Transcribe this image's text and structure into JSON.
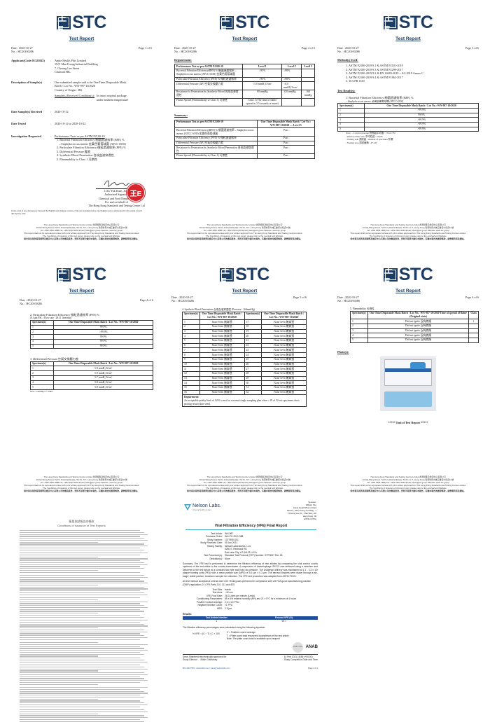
{
  "stc": {
    "logo_glyph": "王E",
    "logo_text": "STC",
    "report_title": "Test Report",
    "date_label": "Date",
    "date": ": 2020-10-27",
    "no_label": "No.",
    "no": ": HC20100286",
    "footer": [
      "The Hong Kong Standards and Testing Centre Limited 香港標準及檢定中心有限公司",
      "10 Dai Wang Street, Tai Po Industrial Estate, Tai Po, N.T., Hong Kong 香港新界大埔工業邨大旺道10號",
      "Tel: +852 2666 1888  Fax: +852 2664 4353  Email: hkstc@stc.group  Website: www.stc.group",
      "This report shall not be reproduced unless with prior written approval from The Hong Kong Standards and Testing Centre Limited.",
      "The Conditions of Issuance of this test report, please refer to the overleaf and Website.",
      "除非事先得到香港標準及檢定中心有限公司的書面批准，否則不得部分複印本報告。有關本報告的簽發條款，請參閱背頁及網站。"
    ]
  },
  "page1": {
    "page": "Page 1 of 6",
    "applicant_label": "Applicant(Code:01325843)",
    "applicant": [
      "Annie Health Plus Limited",
      "19/F. Man Foong Industrial Building",
      "7. Cheung Lee Street",
      "Chaiwan  HK."
    ],
    "desc_label": "Description of Sample(s)",
    "desc": [
      "One submitted sample said to be One Time Disposable Mask.",
      "Batch / Lot No.: WN-987-10/2020",
      "Country of Origin : HK"
    ],
    "cond_label": "Sample(s) Received Condition(s):",
    "cond": "In intact original package under ambient temperature",
    "received_label": "Date Sample(s) Received",
    "received": "2020-10-12",
    "tested_label": "Date Tested",
    "tested": "2020-10-14 to 2020-10-22",
    "inv_label": "Investigation Requested",
    "inv_title": "Performance Tests as per ASTM F2100-19",
    "inv": [
      "1. Bacterial Filtration Efficiency 細菌過濾效率 (BFE) %",
      "   – Staphylococcus aureus 金黃色葡萄球菌 (ATCC 6538)",
      "2. Particulate Filtration Efficiency 微粒過濾效率 (PFE) %",
      "3. Differential Pressure 壓差",
      "4. Synthetic Blood Penetration 合成血液穿透性",
      "5. Flammability to Class 1 可燃性"
    ],
    "seal_glyph": "王E",
    "signatory": [
      "LAU Yuk Kuen, Joey",
      "Authorized Signatory",
      "Chemical and Food Department",
      "For and on behalf of",
      "The Hong Kong Standards and Testing Centre Ltd"
    ],
    "disclaimer": "In the event of any discrepancy between the English and Chinese versions of the test statement below, the English version shall prevail to the extent of such discrepancy only."
  },
  "page2": {
    "page": "Page 2 of 6",
    "req_title": "Requirement:",
    "req_table": {
      "headers": [
        "Performance Test as per ASTM F2100-19",
        "Level 1",
        "Level 2",
        "Level 3"
      ],
      "rows": [
        [
          "Bacterial Filtration Efficiency(BFE) % 細菌過濾效率 – Staphylococcus aureus (ATCC 6538) 金黃色葡萄球菌",
          "≥95%",
          "≥98%",
          ""
        ],
        [
          "Particulate Filtration Efficiency (PFE) % 微粒過濾效率",
          "≥95%",
          "≥98%",
          ""
        ],
        [
          "Differential Pressure (ΔP) 空氣交換壓力差",
          "<5.0 mmH₂O/cm²",
          "<6.0 mmH₂O/cm²",
          ""
        ],
        [
          "Resistance to Penetration by Synthetic Blood 合成血液穿透性",
          "80 mmHg",
          "120 mmHg",
          "160 mmHg"
        ],
        [
          "Flame Spread (Flammability to Class 1) 可燃性",
          "Class 1 (The time of flame spread is 3.5 seconds or more)",
          "",
          ""
        ]
      ]
    },
    "sum_title": "Summary:",
    "sum_table": {
      "headers": [
        "Performance Test as per ASTM F2100-19",
        "One Time Disposable Mask Batch / Lot No.: WN-987-10/2020 — Level 3"
      ],
      "rows": [
        [
          "Bacterial Filtration Efficiency(BFE) % 細菌過濾效率 – Staphylococcus aureus (ATCC 6538) 金黃色葡萄球菌",
          "Pass"
        ],
        [
          "Particulate Filtration Efficiency (PFE) % 微粒過濾效率",
          "Pass"
        ],
        [
          "Differential Pressure (ΔP) 空氣交換壓力差",
          "Pass"
        ],
        [
          "Resistance to Penetration by Synthetic Blood Penetration 合成血液穿透性",
          "Pass"
        ],
        [
          "Flame Spread (Flammability to Class 1) 可燃性",
          "Pass"
        ]
      ]
    }
  },
  "page3": {
    "page": "Page 3 of 6",
    "methods_title": "Method(s) Used:",
    "methods": [
      "1.  ASTM F2100-2019 9.1 & ASTM F2101-2019",
      "2.  ASTM F2100-2019 9.3 & ASTM F2299-2017",
      "3.  ASTM F2100-2019 9.2 & EN 14683:2019 + AC:2019 Annex C",
      "4.  ASTM F2100-2019 9.4 & ASTM F1862-2017",
      "5.  16 CFR 1610"
    ],
    "results_title": "Test Result(s):",
    "bfe_title": "1.  Bacterial Filtration Efficiency 細菌過濾效率 (BFE) %",
    "bfe_sub": "– Staphylococcus aureus 金黃色葡萄球菌 (ATCC 6538)",
    "bfe_table": {
      "headers": [
        "Specimen(s)",
        "One Time Disposable Mask Batch / Lot No.: WN-987-10/2020"
      ],
      "rows": [
        [
          "1",
          ">99.9%"
        ],
        [
          "2",
          "99.9%"
        ],
        [
          "3",
          ">99.9%"
        ],
        [
          "4",
          ">99.9%"
        ],
        [
          "5",
          ">99.9%"
        ]
      ]
    },
    "notes": [
      "Note :  - Control average 對照組平均值 : 1744 CFU",
      "- Mean particle size 平均粒徑 : 3.0μm",
      "- Testing side 測試面 : Outside of specimen 外層",
      "- Testing area 測試面積 : 47 cm²"
    ]
  },
  "page4": {
    "page": "Page 4 of 6",
    "pfe_title": "2.  Particulate Filtration Efficiency 微粒過濾效率 (PFE) %",
    "pfe_sub": "(0.1μm PSL ; Flow rate : 28.31 litre/min)",
    "pfe_table": {
      "headers": [
        "Specimen(s)",
        "One Time Disposable Mask Batch / Lot No.: WN-987-10/2020"
      ],
      "rows": [
        [
          "1",
          "99.9%"
        ],
        [
          "2",
          ">99.9%"
        ],
        [
          "3",
          "99.9%"
        ],
        [
          "4",
          "99.9%"
        ],
        [
          "5",
          "99.9%"
        ]
      ]
    },
    "dp_title": "3.  Differential Pressure 空氣交換壓力差",
    "dp_table": {
      "headers": [
        "Specimen(s)",
        "One Time Disposable Mask Batch / Lot No.: WN-987-10/2020"
      ],
      "rows": [
        [
          "1",
          "5.9 mmH₂O/cm²"
        ],
        [
          "2",
          "5.9 mmH₂O/cm²"
        ],
        [
          "3",
          "5.7 mmH₂O/cm²"
        ],
        [
          "4",
          "5.8 mmH₂O/cm²"
        ],
        [
          "5",
          "5.8 mmH₂O/cm²"
        ]
      ]
    },
    "note": "Note :  1mmH₂O = 9.8Pa"
  },
  "page5": {
    "page": "Page 5 of 6",
    "sbp_title": "4.  Synthetic Blood Penetration 合成血液穿透性 (Pressure : 160mmHg)",
    "sbp_table": {
      "headers": [
        "Specimen(s)",
        "One Time Disposable Mask Batch / Lot No.: WN-987-10/2020",
        "Specimen(s)",
        "One Time Disposable Mask Batch / Lot No.: WN-987-10/2020"
      ],
      "rows": [
        [
          "1",
          "None Seen 無穿透",
          "17",
          "None Seen 無穿透"
        ],
        [
          "2",
          "None Seen 無穿透",
          "18",
          "None Seen 無穿透"
        ],
        [
          "3",
          "None Seen 無穿透",
          "19",
          "None Seen 無穿透"
        ],
        [
          "4",
          "None Seen 無穿透",
          "20",
          "None Seen 無穿透"
        ],
        [
          "5",
          "None Seen 無穿透",
          "21",
          "None Seen 無穿透"
        ],
        [
          "6",
          "None Seen 無穿透",
          "22",
          "None Seen 無穿透"
        ],
        [
          "7",
          "None Seen 無穿透",
          "23",
          "None Seen 無穿透"
        ],
        [
          "8",
          "None Seen 無穿透",
          "24",
          "None Seen 無穿透"
        ],
        [
          "9",
          "None Seen 無穿透",
          "25",
          "None Seen 無穿透"
        ],
        [
          "10",
          "None Seen 無穿透",
          "26",
          "None Seen 無穿透"
        ],
        [
          "11",
          "None Seen 無穿透",
          "27",
          "None Seen 無穿透"
        ],
        [
          "12",
          "None Seen 無穿透",
          "28",
          "None Seen 無穿透"
        ],
        [
          "13",
          "None Seen 無穿透",
          "29",
          "None Seen 無穿透"
        ],
        [
          "14",
          "None Seen 無穿透",
          "30",
          "None Seen 無穿透"
        ],
        [
          "15",
          "None Seen 無穿透",
          "31",
          "None Seen 無穿透"
        ],
        [
          "16",
          "None Seen 無穿透",
          "32",
          "None Seen 無穿透"
        ]
      ]
    },
    "req_label": "Requirement:",
    "req_text": "An acceptable quality limit of 4.0% is met for a normal single sampling plan when ≥ 29 of 32 test specimens show passing result (none seen)."
  },
  "page6": {
    "page": "Page 6 of 6",
    "flam_title": "5.  Flammability 可燃性",
    "flam_table": {
      "headers": [
        "Specimen(s)",
        "One Time Disposable Mask Batch / Lot No.: WN-987-10/2020 Time of spread of flame (Original state)",
        "Class"
      ],
      "rows": [
        [
          "1",
          "Did not ignite 沒有燃燒",
          "1"
        ],
        [
          "2",
          "Did not ignite 沒有燃燒",
          ""
        ],
        [
          "3",
          "Did not ignite 沒有燃燒",
          ""
        ],
        [
          "4",
          "Did not ignite 沒有燃燒",
          ""
        ],
        [
          "5",
          "Did not ignite 沒有燃燒",
          ""
        ]
      ]
    },
    "photos_title": "Photo(s):",
    "end": "***** End of Test Report *****"
  },
  "conditions": {
    "title_cn": "簽發測試報告的條款",
    "title_en": "Conditions of Issuance of Test Reports"
  },
  "nelson": {
    "logo": "Nelson Labs.",
    "tagline": "A Sotera Health company",
    "sponsor": [
      "Sponsor:",
      "William Sze",
      "Annie Health Plus Limited",
      "19th Fl., Man Foong Ind. Bldg., 7",
      "Cheung Lee St., Chai Wan, HK",
      "Hong Kong, 00",
      "HONG KONG"
    ],
    "title": "Viral Filtration Efficiency (VFE) Final Report",
    "info": [
      [
        "Test Article:",
        "WN-987"
      ],
      [
        "Purchase Order:",
        "WN-PO-2021-388"
      ],
      [
        "Study Number:",
        "1377995-S01"
      ],
      [
        "Study Received Date:",
        "05 Jan 2021"
      ],
      [
        "Testing Facility:",
        "Nelson Laboratories, LLC"
      ],
      [
        "",
        "6280 S. Redwood Rd."
      ],
      [
        "",
        "Salt Lake City, UT 84123 U.S.A."
      ],
      [
        "Test Procedure(s):",
        "Standard Test Protocol (STP) Number: STP0007 Rev 18"
      ],
      [
        "Deviation(s):",
        "None"
      ]
    ],
    "summary": "Summary: The VFE test is performed to determine the filtration efficiency of test articles by comparing the viral control counts upstream of the test article to the counts downstream. A suspension of bacteriophage ΦX174 was delivered using a nebulizer and delivered to the test article at a constant flow rate and fixed air pressure. The challenge delivery was maintained at 1.1 - 3.3 x 10³ plaque forming units (PFU) with a mean particle size (MPS) of 3.0 µm ± 0.3 µm. The aerosol droplets were drawn through a six-stage, viable particle, Andersen sampler for collection. The VFE test procedure was adapted from ASTM F2101.",
    "compliance": "All test method acceptance criteria were met. Testing was performed in compliance with US FDA good manufacturing practice (GMP) regulations 21 CFR Parts 210, 211 and 820.",
    "params": [
      [
        "Test Side:",
        "Inside"
      ],
      [
        "Test Area:",
        "~40 cm²"
      ],
      [
        "VFE Flow Rate:",
        "28.3 Liters per minute (L/min)"
      ],
      [
        "Conditioning Parameters:",
        "85 ± 5% relative humidity (RH) and 21 ± 5°C for a minimum of 4 hours"
      ],
      [
        "Positive Control Average:",
        "2.3 x 10³ PFU"
      ],
      [
        "Negative Monitor Count:",
        "<1 PFU"
      ],
      [
        "MPS:",
        "2.9 µm"
      ]
    ],
    "results_label": "Results:",
    "results_table": {
      "headers": [
        "Test Article Number",
        "Percent VFE (%)"
      ],
      "rows": [
        [
          "1",
          "99.7"
        ]
      ]
    },
    "equation_intro": "The filtration efficiency percentages were calculated using the following equation:",
    "equation": "% VFE = (C − T) / C × 100",
    "eq_defs": [
      "C = Positive control average",
      "T = Plate count total recovered downstream of the test article",
      "Note: The plate count total is available upon request"
    ],
    "badges": [
      "ISO/IEC 17025",
      "ANAB"
    ],
    "approver": "Sean Shepherd electronically approved for",
    "director_label": "Study Director",
    "director": "Mitch Goldsbury",
    "date": "14 Feb 2021 18:56 (+00:00)",
    "date_label": "Study Completion Date and Time",
    "footer": [
      "801-290-7500",
      "nelsonlabs.com",
      "sales@nelsonlabs.com"
    ],
    "page": "Page 1 of 1",
    "colors": {
      "accent": "#2a5aa8",
      "table_header": "#1f4e9a",
      "brand": "#3aa0c8"
    }
  }
}
